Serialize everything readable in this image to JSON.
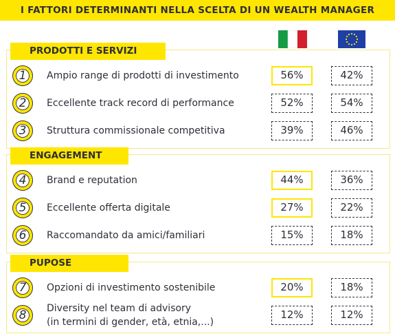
{
  "header": {
    "title": "I FATTORI DETERMINANTI NELLA SCELTA DI UN WEALTH MANAGER"
  },
  "sections": [
    {
      "title": "PRODOTTI E SERVIZI",
      "items": [
        {
          "number": "1",
          "label": "Ampio range di prodotti di investimento",
          "italy": "56%",
          "europe": "42%",
          "highlight": true
        },
        {
          "number": "2",
          "label": "Eccellente track record di performance",
          "italy": "52%",
          "europe": "54%",
          "highlight": false
        },
        {
          "number": "3",
          "label": "Struttura commissionale competitiva",
          "italy": "39%",
          "europe": "46%",
          "highlight": false
        }
      ]
    },
    {
      "title": "ENGAGEMENT",
      "items": [
        {
          "number": "4",
          "label": "Brand e reputation",
          "italy": "44%",
          "europe": "36%",
          "highlight": true
        },
        {
          "number": "5",
          "label": "Eccellente offerta digitale",
          "italy": "27%",
          "europe": "22%",
          "highlight": true
        },
        {
          "number": "6",
          "label": "Raccomandato da amici/familiari",
          "italy": "15%",
          "europe": "18%",
          "highlight": false
        }
      ]
    },
    {
      "title": "PUPOSE",
      "items": [
        {
          "number": "7",
          "label": "Opzioni di investimento sostenibile",
          "italy": "20%",
          "europe": "18%",
          "highlight": true
        },
        {
          "number": "8",
          "label": [
            "Diversity nel team di advisory",
            "(in termini di gender, età, etnia,...)"
          ],
          "italy": "12%",
          "europe": "12%",
          "highlight": false
        }
      ]
    }
  ]
}
